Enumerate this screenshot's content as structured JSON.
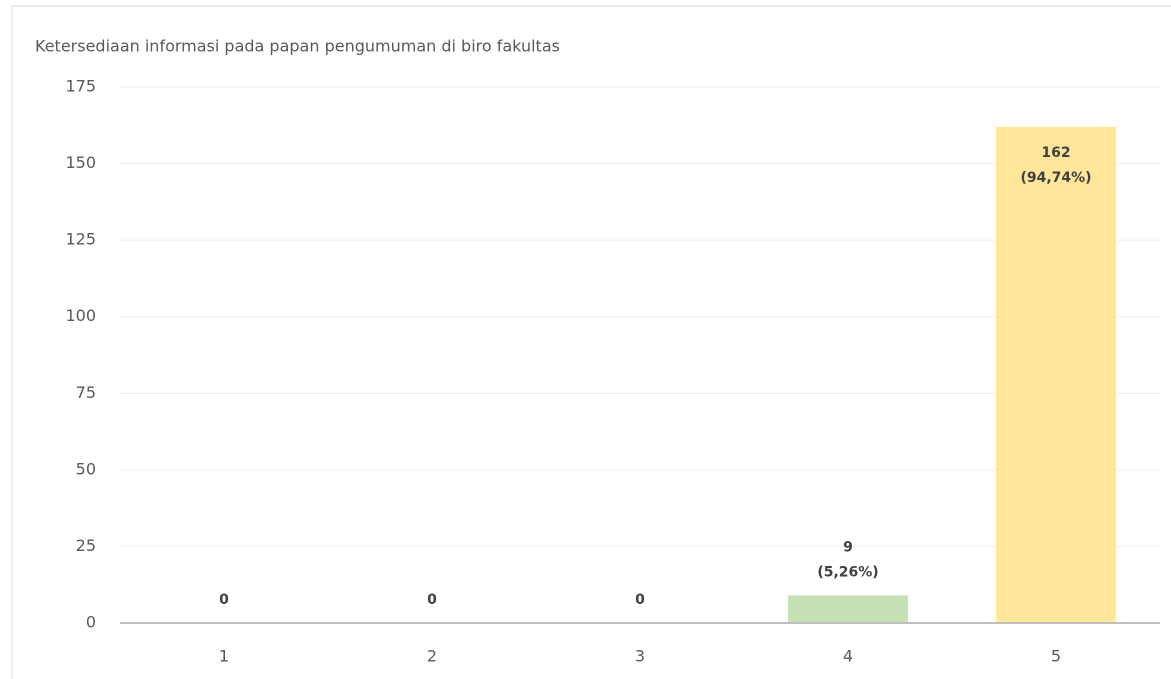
{
  "chart_data": {
    "type": "bar",
    "title": "Ketersediaan informasi pada papan pengumuman di biro fakultas",
    "categories": [
      "1",
      "2",
      "3",
      "4",
      "5"
    ],
    "values": [
      0,
      0,
      0,
      9,
      162
    ],
    "value_labels": [
      "0",
      "0",
      "0",
      "9\n(5,26%)",
      "162\n(94,74%)"
    ],
    "colors": [
      null,
      null,
      null,
      "#c5e0b4",
      "#ffe699"
    ],
    "ylim": [
      0,
      175
    ],
    "yticks": [
      0,
      25,
      50,
      75,
      100,
      125,
      150,
      175
    ],
    "grid": true
  }
}
